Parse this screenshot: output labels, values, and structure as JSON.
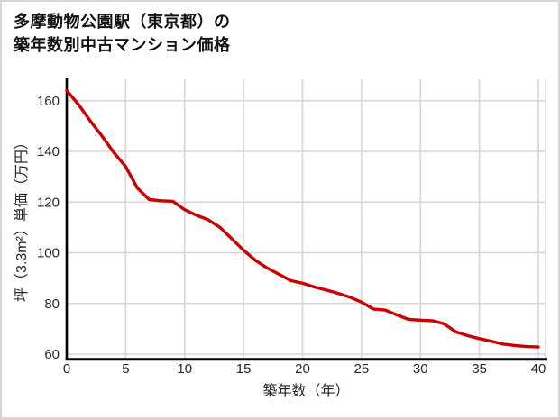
{
  "title": {
    "line1": "多摩動物公園駅（東京都）の",
    "line2": "築年数別中古マンション価格"
  },
  "chart_data": {
    "type": "line",
    "title": "多摩動物公園駅（東京都）の築年数別中古マンション価格",
    "xlabel": "築年数（年）",
    "ylabel": "坪（3.3m²）単価（万円）",
    "x": [
      0,
      1,
      2,
      3,
      4,
      5,
      6,
      7,
      8,
      9,
      10,
      11,
      12,
      13,
      14,
      15,
      16,
      17,
      18,
      19,
      20,
      21,
      22,
      23,
      24,
      25,
      26,
      27,
      28,
      29,
      30,
      31,
      32,
      33,
      34,
      35,
      36,
      37,
      38,
      39,
      40
    ],
    "values": [
      164,
      158.5,
      152,
      146,
      139.5,
      134,
      125.5,
      121,
      120.5,
      120.3,
      117,
      114.8,
      113,
      110,
      105.5,
      101,
      97,
      94,
      91.5,
      89,
      88,
      86.5,
      85.3,
      84,
      82.5,
      80.5,
      77.8,
      77.4,
      75.5,
      73.7,
      73.4,
      73.2,
      72,
      68.8,
      67.3,
      66.1,
      65.1,
      64,
      63.4,
      63,
      62.8
    ],
    "x_ticks": [
      0,
      5,
      10,
      15,
      20,
      25,
      30,
      35,
      40
    ],
    "y_ticks": [
      60,
      80,
      100,
      120,
      140,
      160
    ],
    "xlim": [
      0,
      40
    ],
    "ylim": [
      58.5,
      168.5
    ],
    "grid": true,
    "legend": "none"
  },
  "colors": {
    "line": "#cc0000",
    "grid": "#d6d6d6",
    "axis": "#000000",
    "tick_text": "#262626",
    "title_text": "#111111",
    "background": "#ffffff",
    "card_border": "#d6d6d6"
  }
}
